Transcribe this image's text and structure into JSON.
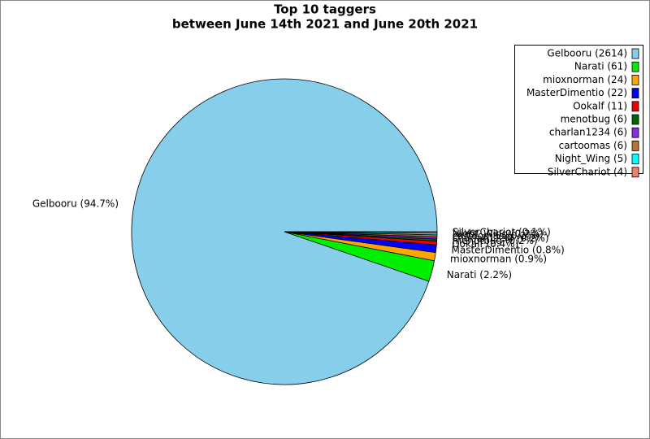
{
  "chart_data": {
    "type": "pie",
    "title": "Top 10 taggers",
    "subtitle": "between June 14th 2021 and June 20th 2021",
    "categories": [
      "Gelbooru",
      "Narati",
      "mioxnorman",
      "MasterDimentio",
      "Ookalf",
      "menotbug",
      "charlan1234",
      "cartoomas",
      "Night_Wing",
      "SilverChariot"
    ],
    "values": [
      2614,
      61,
      24,
      22,
      11,
      6,
      6,
      6,
      5,
      4
    ],
    "value_labels": [
      "Gelbooru (94.7%)",
      "Narati (2.2%)",
      "mioxnorman (0.9%)",
      "MasterDimentio (0.8%)",
      "Ookalf (0.4%)",
      "menotbug (0.2%)",
      "charlan1234 (0.2%)",
      "cartoomas (0.2%)",
      "Night_Wing (0.2%)",
      "SilverChariot (0.1%)"
    ],
    "legend_labels": [
      "Gelbooru (2614)",
      "Narati (61)",
      "mioxnorman (24)",
      "MasterDimentio (22)",
      "Ookalf (11)",
      "menotbug (6)",
      "charlan1234 (6)",
      "cartoomas (6)",
      "Night_Wing (5)",
      "SilverChariot (4)"
    ],
    "colors": [
      "#87ceeb",
      "#00ee00",
      "#ffa500",
      "#0000ff",
      "#ee0000",
      "#006400",
      "#8a2be2",
      "#b8733a",
      "#00ffff",
      "#f08070"
    ],
    "legend": "upper right"
  }
}
